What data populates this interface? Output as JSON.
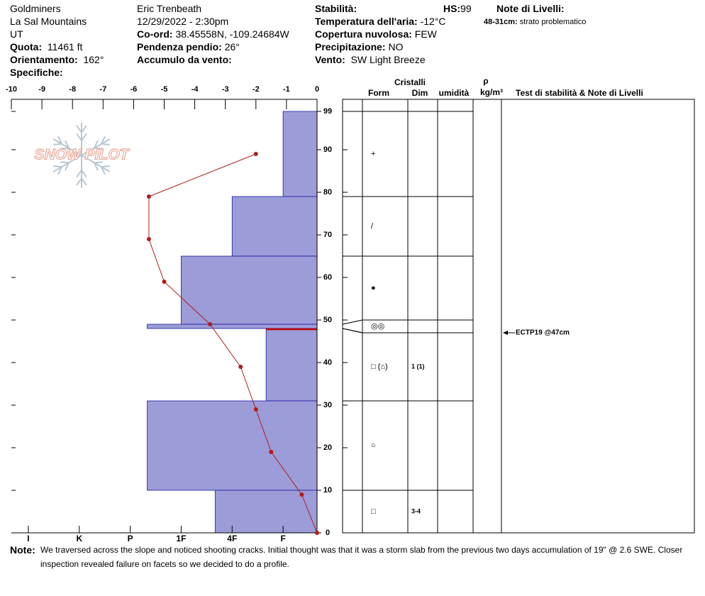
{
  "header": {
    "site": "Goldminers",
    "range": "La Sal Mountains",
    "state": "UT",
    "elevation_label": "Quota:",
    "elevation": "11461 ft",
    "aspect_label": "Orientamento:",
    "aspect": "162°",
    "specifics_label": "Specifiche:",
    "observer": "Eric Trenbeath",
    "datetime": "12/29/2022 - 2:30pm",
    "coord_label": "Co-ord:",
    "coord": "38.45558N, -109.24684W",
    "slope_label": "Pendenza pendio:",
    "slope": "26°",
    "wind_loading_label": "Accumulo da vento:",
    "stability_label": "Stabilità:",
    "air_temp_label": "Temperatura dell'aria:",
    "air_temp": "-12°C",
    "sky_label": "Copertura nuvolosa:",
    "sky": "FEW",
    "precip_label": "Precipitazione:",
    "precip": "NO",
    "wind_label": "Vento:",
    "wind": "SW Light Breeze",
    "hs_label": "HS:",
    "hs": "99",
    "layer_notes_label": "Note di Livelli:",
    "layer_note_range": "48-31cm:",
    "layer_note_text": "strato problematico"
  },
  "note": {
    "label": "Note:",
    "text": "We traversed across the slope and noticed shooting cracks. Initial thought was that it was a storm slab from the previous two days accumulation of 19\" @ 2.6 SWE. Closer inspection revealed failure on facets so we decided to do a profile."
  },
  "chart_data": {
    "type": "snow-profile",
    "logo": "SNOW PILOT",
    "xlim": [
      -10,
      0
    ],
    "xticks": [
      -10,
      -9,
      -8,
      -7,
      -6,
      -5,
      -4,
      -3,
      -2,
      -1,
      0
    ],
    "ylim": [
      0,
      99
    ],
    "yticks": [
      0,
      10,
      20,
      30,
      40,
      50,
      60,
      70,
      80,
      90,
      99
    ],
    "hardness_lim": [
      0,
      18
    ],
    "hardness_ticks": [
      {
        "value": 2,
        "label": "F"
      },
      {
        "value": 5,
        "label": "4F"
      },
      {
        "value": 8,
        "label": "1F"
      },
      {
        "value": 11,
        "label": "P"
      },
      {
        "value": 14,
        "label": "K"
      },
      {
        "value": 17,
        "label": "I"
      }
    ],
    "layers": {
      "color": "#9c9cd8",
      "edge_color": "#1c1ca0",
      "problem_color": "#c00000",
      "top": [
        99,
        79,
        65,
        49,
        48,
        31,
        10
      ],
      "bottom": [
        79,
        65,
        49,
        48,
        31,
        10,
        0
      ],
      "hardness": [
        2,
        5,
        8,
        10,
        3,
        10,
        6
      ],
      "forms": [
        "+",
        "/",
        "●",
        "◎◎",
        "□ (⌂)",
        "○",
        "□"
      ],
      "sizes": [
        null,
        null,
        null,
        null,
        "1 (1)",
        null,
        "3-4"
      ]
    },
    "temperature": {
      "color": "#b01c1c",
      "depth": [
        89,
        79,
        69,
        59,
        49,
        39,
        29,
        19,
        9,
        0
      ],
      "values": [
        -2,
        -5.5,
        -5.5,
        -5,
        -3.5,
        -2.5,
        -2,
        -1.5,
        -0.5,
        0
      ]
    },
    "table": {
      "group": "Cristalli",
      "form": "Form",
      "dim": "Dim",
      "humidity": "umidità",
      "rho": "ρ",
      "rho_unit": "kg/m³",
      "tests": "Test di stabilità & Note di Livelli"
    },
    "tests": [
      {
        "label": "ECTP19 @47cm",
        "depth": 47
      }
    ]
  }
}
